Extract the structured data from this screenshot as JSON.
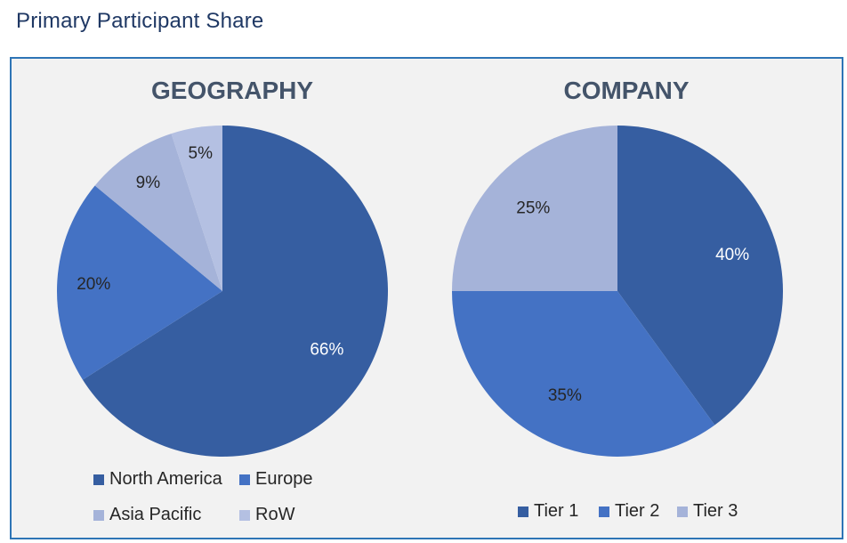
{
  "page": {
    "title": "Primary Participant Share"
  },
  "chart_data": [
    {
      "type": "pie",
      "title": "GEOGRAPHY",
      "categories": [
        "North America",
        "Europe",
        "Asia Pacific",
        "RoW"
      ],
      "values": [
        66,
        20,
        9,
        5
      ],
      "labels": [
        "66%",
        "20%",
        "9%",
        "5%"
      ],
      "colors": [
        "#365ea1",
        "#4472c4",
        "#a5b3d9",
        "#b4c0e2"
      ],
      "label_colors": [
        "#ffffff",
        "#262626",
        "#262626",
        "#262626"
      ],
      "legend": {
        "position": "bottom"
      }
    },
    {
      "type": "pie",
      "title": "COMPANY",
      "categories": [
        "Tier 1",
        "Tier 2",
        "Tier 3"
      ],
      "values": [
        40,
        35,
        25
      ],
      "labels": [
        "40%",
        "35%",
        "25%"
      ],
      "colors": [
        "#365ea1",
        "#4472c4",
        "#a5b3d9"
      ],
      "label_colors": [
        "#ffffff",
        "#262626",
        "#262626"
      ],
      "legend": {
        "position": "bottom"
      }
    }
  ]
}
